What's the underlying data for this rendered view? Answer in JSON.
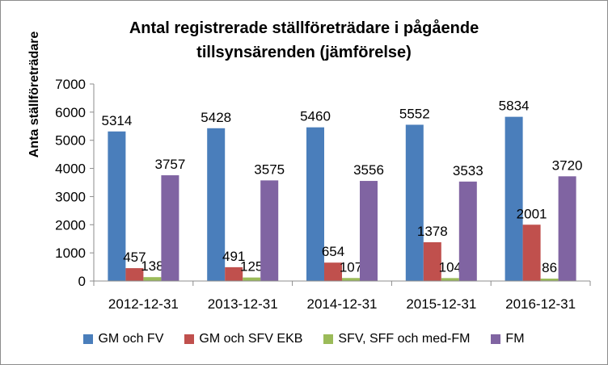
{
  "chart_data": {
    "type": "bar",
    "title": "Antal registrerade ställföreträdare i pågående\ntillsynsärenden (jämförelse)",
    "ylabel": "Anta ställföreträdare",
    "xlabel": "",
    "ylim": [
      0,
      7000
    ],
    "yticks": [
      0,
      1000,
      2000,
      3000,
      4000,
      5000,
      6000,
      7000
    ],
    "grid": false,
    "legend_position": "bottom",
    "categories": [
      "2012-12-31",
      "2013-12-31",
      "2014-12-31",
      "2015-12-31",
      "2016-12-31"
    ],
    "series": [
      {
        "name": "GM och FV",
        "color": "#4a7ebb",
        "values": [
          5314,
          5428,
          5460,
          5552,
          5834
        ]
      },
      {
        "name": "GM och SFV EKB",
        "color": "#c0504d",
        "values": [
          457,
          491,
          654,
          1378,
          2001
        ]
      },
      {
        "name": "SFV, SFF och med-FM",
        "color": "#9bbb59",
        "values": [
          138,
          125,
          107,
          104,
          86
        ]
      },
      {
        "name": "FM",
        "color": "#8064a2",
        "values": [
          3757,
          3575,
          3556,
          3533,
          3720
        ]
      }
    ]
  }
}
